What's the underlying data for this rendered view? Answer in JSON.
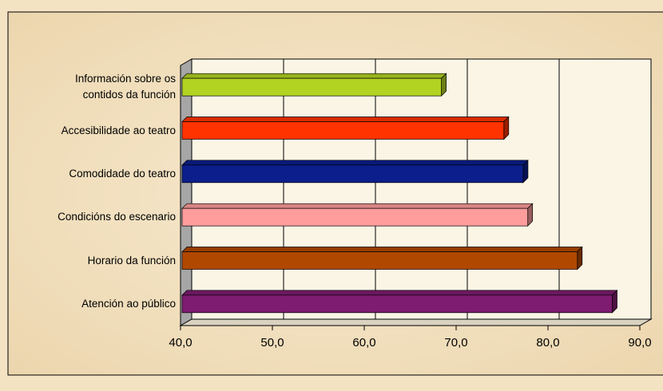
{
  "chart_data": {
    "type": "bar",
    "orientation": "horizontal",
    "categories": [
      "Información sobre os contidos da función",
      "Accesibilidade ao teatro",
      "Comodidade do teatro",
      "Condicións do escenario",
      "Horario da función",
      "Atención ao público"
    ],
    "values": [
      68.4,
      75.2,
      77.3,
      77.8,
      83.2,
      87.0
    ],
    "colors": [
      "#b3d323",
      "#ff3300",
      "#0b1e8c",
      "#ff9c9c",
      "#b04800",
      "#7d1c70"
    ],
    "xlim": [
      40,
      90
    ],
    "xticks": [
      {
        "value": 40,
        "label": "40,0"
      },
      {
        "value": 50,
        "label": "50,0"
      },
      {
        "value": 60,
        "label": "60,0"
      },
      {
        "value": 70,
        "label": "70,0"
      },
      {
        "value": 80,
        "label": "80,0"
      },
      {
        "value": 90,
        "label": "90,0"
      }
    ],
    "grid": true
  }
}
